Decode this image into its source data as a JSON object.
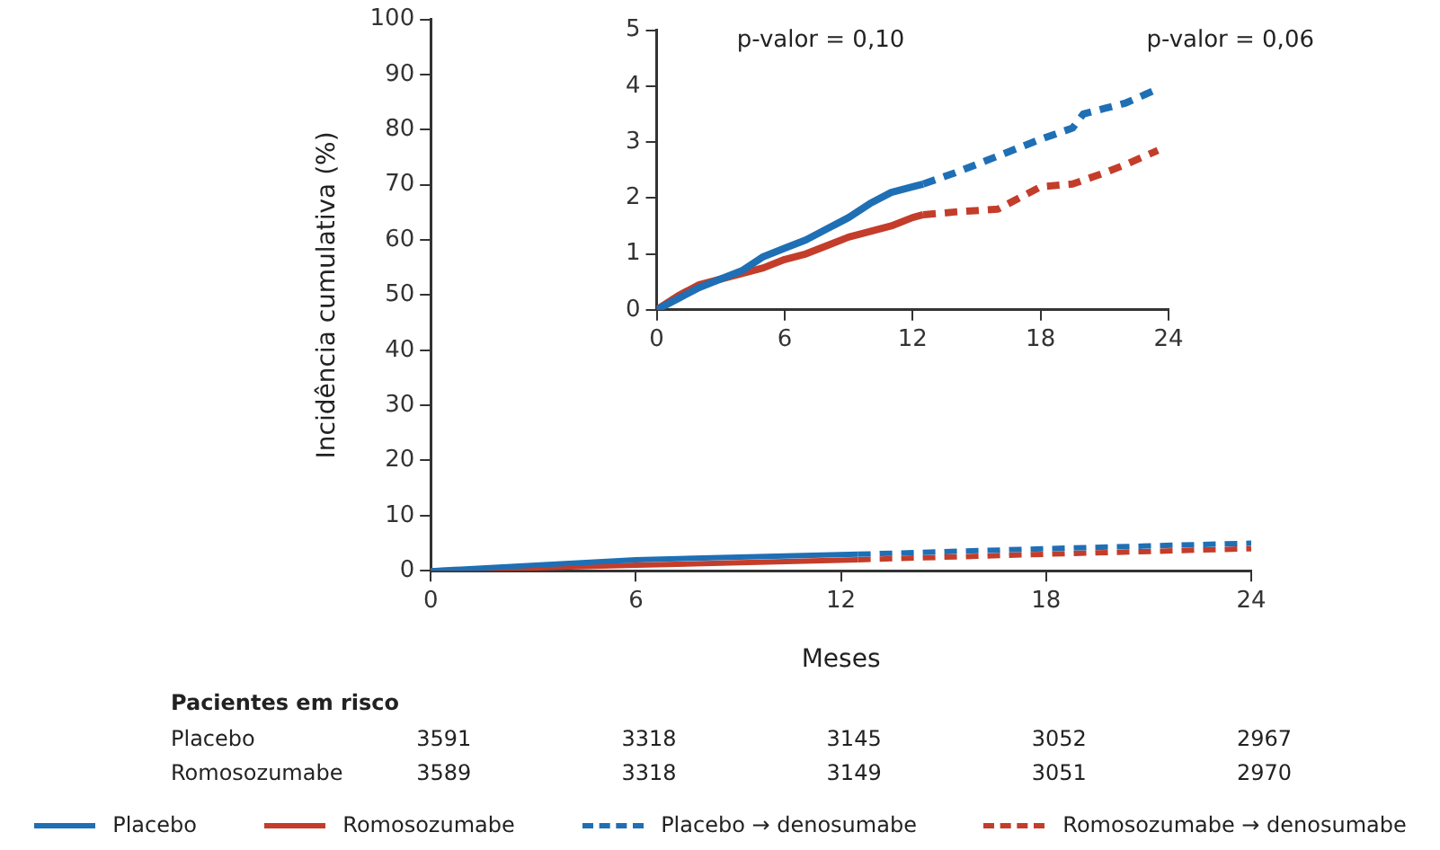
{
  "chart_data": [
    {
      "type": "line",
      "xlabel": "Meses",
      "ylabel": "Incidência cumulativa (%)",
      "xlim": [
        0,
        24
      ],
      "xticks": [
        0,
        6,
        12,
        18,
        24
      ],
      "ylim": [
        0,
        100
      ],
      "yticks": [
        0,
        10,
        20,
        30,
        40,
        50,
        60,
        70,
        80,
        90,
        100
      ],
      "grid": false,
      "legend": "bottom",
      "marker": "none",
      "annotations": [
        "Pacientes em risco",
        "Placebo",
        "3591",
        "3318",
        "3145",
        "3052",
        "2967",
        "Romosozumabe",
        "3589",
        "3318",
        "3149",
        "3051",
        "2970"
      ],
      "series": [
        {
          "name": "Placebo",
          "color": "#1f6fb5",
          "line_style": "solid",
          "x": [
            0,
            6,
            12.5
          ],
          "values": [
            0,
            2,
            3
          ]
        },
        {
          "name": "Romosozumabe",
          "color": "#c43d2a",
          "line_style": "solid",
          "x": [
            0,
            6,
            12.5
          ],
          "values": [
            0,
            1,
            2
          ]
        },
        {
          "name": "Placebo → denosumabe",
          "color": "#1f6fb5",
          "line_style": "dashed",
          "x": [
            12.5,
            18,
            24
          ],
          "values": [
            3,
            4,
            5
          ]
        },
        {
          "name": "Romosozumabe → denosumabe",
          "color": "#c43d2a",
          "line_style": "dashed",
          "x": [
            12.5,
            18,
            24
          ],
          "values": [
            2,
            3,
            4
          ]
        }
      ]
    },
    {
      "type": "line",
      "xlim": [
        0,
        24
      ],
      "xticks": [
        0,
        6,
        12,
        18,
        24
      ],
      "ylim": [
        0,
        5
      ],
      "yticks": [
        0,
        1,
        2,
        3,
        4,
        5
      ],
      "grid": false,
      "marker": "none",
      "annotations": [
        "p-valor = 0,10",
        "p-valor = 0,06"
      ],
      "series": [
        {
          "color": "#1f6fb5",
          "line_style": "solid",
          "x": [
            0,
            1,
            2,
            3,
            4,
            5,
            6,
            7,
            8,
            9,
            10,
            11,
            12,
            12.5
          ],
          "values": [
            0,
            0.2,
            0.4,
            0.55,
            0.7,
            0.95,
            1.1,
            1.25,
            1.45,
            1.65,
            1.9,
            2.1,
            2.2,
            2.25
          ]
        },
        {
          "color": "#c43d2a",
          "line_style": "solid",
          "x": [
            0,
            1,
            2,
            3,
            4,
            5,
            6,
            7,
            8,
            9,
            10,
            11,
            12,
            12.5
          ],
          "values": [
            0,
            0.25,
            0.45,
            0.55,
            0.65,
            0.75,
            0.9,
            1.0,
            1.15,
            1.3,
            1.4,
            1.5,
            1.65,
            1.7
          ]
        },
        {
          "color": "#1f6fb5",
          "line_style": "dashed",
          "x": [
            12.5,
            14,
            16,
            18,
            19.5,
            20,
            21,
            22,
            23.5
          ],
          "values": [
            2.25,
            2.45,
            2.75,
            3.05,
            3.25,
            3.5,
            3.6,
            3.7,
            3.95
          ]
        },
        {
          "color": "#c43d2a",
          "line_style": "dashed",
          "x": [
            12.5,
            14,
            16,
            17,
            18,
            19.5,
            21,
            22,
            23.5
          ],
          "values": [
            1.7,
            1.75,
            1.8,
            2.0,
            2.2,
            2.25,
            2.45,
            2.6,
            2.85
          ]
        }
      ]
    }
  ]
}
